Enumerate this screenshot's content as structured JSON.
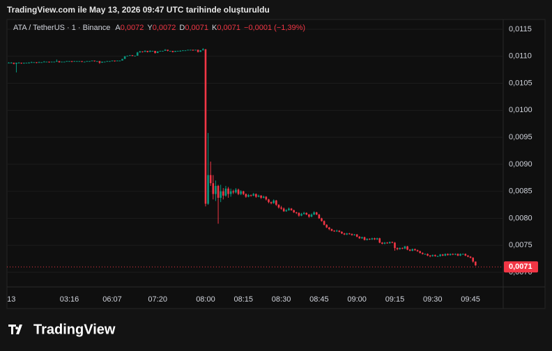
{
  "header": {
    "title": "TradingView.com ile May 13, 2026 09:47 UTC tarihinde oluşturuldu",
    "brand": "TradingView"
  },
  "chart_data": {
    "type": "candlestick",
    "symbol": "ATA / TetherUS · 1 · Binance",
    "ohlc_legend": [
      {
        "label": "A",
        "value": "0,0072"
      },
      {
        "label": "Y",
        "value": "0,0072"
      },
      {
        "label": "D",
        "value": "0,0071"
      },
      {
        "label": "K",
        "value": "0,0071"
      }
    ],
    "change": "−0,0001 (−1,39%)",
    "up_color": "#089981",
    "down_color": "#f23645",
    "grid": true,
    "ylim": [
      0.00673,
      0.01168
    ],
    "yticks": [
      {
        "value": 0.007,
        "label": "0,0070"
      },
      {
        "value": 0.0075,
        "label": "0,0075"
      },
      {
        "value": 0.008,
        "label": "0,0080"
      },
      {
        "value": 0.0085,
        "label": "0,0085"
      },
      {
        "value": 0.009,
        "label": "0,0090"
      },
      {
        "value": 0.0095,
        "label": "0,0095"
      },
      {
        "value": 0.01,
        "label": "0,0100"
      },
      {
        "value": 0.0105,
        "label": "0,0105"
      },
      {
        "value": 0.011,
        "label": "0,0110"
      },
      {
        "value": 0.0115,
        "label": "0,0115"
      }
    ],
    "last_price": {
      "value": 0.0071,
      "label": "0,0071"
    },
    "categories": [
      null,
      "13",
      null,
      null,
      null,
      null,
      null,
      null,
      null,
      null,
      null,
      null,
      null,
      null,
      null,
      null,
      null,
      null,
      null,
      null,
      null,
      null,
      null,
      null,
      "03:16",
      null,
      null,
      null,
      null,
      null,
      null,
      null,
      null,
      null,
      null,
      null,
      null,
      null,
      null,
      null,
      null,
      "06:07",
      null,
      null,
      null,
      null,
      null,
      null,
      null,
      null,
      null,
      null,
      null,
      null,
      null,
      null,
      null,
      null,
      null,
      "07:20",
      null,
      null,
      null,
      null,
      null,
      null,
      null,
      null,
      null,
      null,
      null,
      null,
      null,
      null,
      null,
      null,
      null,
      null,
      "08:00",
      null,
      null,
      null,
      null,
      null,
      null,
      null,
      null,
      null,
      null,
      null,
      null,
      null,
      null,
      "08:15",
      null,
      null,
      null,
      null,
      null,
      null,
      null,
      null,
      null,
      null,
      null,
      null,
      null,
      null,
      "08:30",
      null,
      null,
      null,
      null,
      null,
      null,
      null,
      null,
      null,
      null,
      null,
      null,
      null,
      null,
      "08:45",
      null,
      null,
      null,
      null,
      null,
      null,
      null,
      null,
      null,
      null,
      null,
      null,
      null,
      null,
      "09:00",
      null,
      null,
      null,
      null,
      null,
      null,
      null,
      null,
      null,
      null,
      null,
      null,
      null,
      null,
      "09:15",
      null,
      null,
      null,
      null,
      null,
      null,
      null,
      null,
      null,
      null,
      null,
      null,
      null,
      null,
      "09:30",
      null,
      null,
      null,
      null,
      null,
      null,
      null,
      null,
      null,
      null,
      null,
      null,
      null,
      null,
      "09:45",
      null,
      null
    ],
    "open": [
      0.01088,
      0.01088,
      0.01088,
      0.01086,
      0.01088,
      0.01088,
      0.01087,
      0.01088,
      0.01088,
      0.01088,
      0.01089,
      0.01089,
      0.01088,
      0.01089,
      0.01089,
      0.0109,
      0.0109,
      0.01089,
      0.0109,
      0.0109,
      0.01091,
      0.01089,
      0.0109,
      0.0109,
      0.01091,
      0.01091,
      0.0109,
      0.01091,
      0.01091,
      0.01091,
      0.0109,
      0.0109,
      0.01091,
      0.01091,
      0.01092,
      0.01091,
      0.01091,
      0.01088,
      0.0109,
      0.0109,
      0.01091,
      0.01091,
      0.01092,
      0.01091,
      0.01092,
      0.01092,
      0.01095,
      0.011,
      0.01101,
      0.01102,
      0.01101,
      0.01101,
      0.01107,
      0.01109,
      0.01108,
      0.0111,
      0.01108,
      0.0111,
      0.0111,
      0.01106,
      0.01109,
      0.0111,
      0.0111,
      0.01112,
      0.0111,
      0.0111,
      0.01108,
      0.0111,
      0.0111,
      0.0111,
      0.01111,
      0.01111,
      0.01112,
      0.01112,
      0.01111,
      0.01112,
      0.01108,
      0.01111,
      0.01113,
      0.00827,
      0.0088,
      0.00865,
      0.00845,
      0.0086,
      0.00838,
      0.0085,
      0.00842,
      0.00855,
      0.00845,
      0.0085,
      0.00848,
      0.00853,
      0.00845,
      0.0085,
      0.00845,
      0.0084,
      0.00843,
      0.00842,
      0.00845,
      0.0084,
      0.00842,
      0.00838,
      0.0084,
      0.00835,
      0.0083,
      0.00828,
      0.00833,
      0.00825,
      0.0082,
      0.00818,
      0.00813,
      0.00815,
      0.00818,
      0.00815,
      0.00811,
      0.0081,
      0.00805,
      0.00808,
      0.0081,
      0.00807,
      0.00803,
      0.00807,
      0.00811,
      0.00807,
      0.008,
      0.00795,
      0.00788,
      0.00783,
      0.0078,
      0.00777,
      0.00776,
      0.00777,
      0.00775,
      0.00772,
      0.0077,
      0.00772,
      0.00771,
      0.00769,
      0.0077,
      0.00766,
      0.00763,
      0.00765,
      0.0076,
      0.00762,
      0.00761,
      0.00763,
      0.00761,
      0.00763,
      0.00755,
      0.00753,
      0.00755,
      0.00754,
      0.00756,
      0.00755,
      0.00745,
      0.00743,
      0.00745,
      0.00744,
      0.00748,
      0.00742,
      0.0074,
      0.00743,
      0.00741,
      0.00739,
      0.00736,
      0.00734,
      0.00734,
      0.00731,
      0.0073,
      0.00732,
      0.0073,
      0.0073,
      0.00733,
      0.00731,
      0.00734,
      0.00732,
      0.00734,
      0.00733,
      0.00734,
      0.00731,
      0.00734,
      0.00734,
      0.00731,
      0.00729,
      0.00727,
      0.0072
    ],
    "high": [
      0.01089,
      0.01089,
      0.01088,
      0.01088,
      0.01089,
      0.01088,
      0.01088,
      0.01088,
      0.01089,
      0.0109,
      0.01089,
      0.01089,
      0.0109,
      0.01089,
      0.01091,
      0.0109,
      0.0109,
      0.0109,
      0.0109,
      0.01094,
      0.01091,
      0.0109,
      0.0109,
      0.01091,
      0.01091,
      0.01091,
      0.01091,
      0.01091,
      0.01091,
      0.01091,
      0.0109,
      0.01091,
      0.01091,
      0.01092,
      0.01092,
      0.01091,
      0.01091,
      0.0109,
      0.0109,
      0.01091,
      0.01091,
      0.01092,
      0.01092,
      0.01092,
      0.01092,
      0.01095,
      0.011,
      0.01101,
      0.01102,
      0.01102,
      0.01101,
      0.01108,
      0.0111,
      0.01109,
      0.01111,
      0.0111,
      0.01111,
      0.0111,
      0.0111,
      0.01109,
      0.0111,
      0.0111,
      0.01113,
      0.01112,
      0.0111,
      0.0111,
      0.0111,
      0.0111,
      0.01111,
      0.01111,
      0.01111,
      0.01112,
      0.01112,
      0.01112,
      0.01112,
      0.01112,
      0.01111,
      0.01115,
      0.01113,
      0.00958,
      0.00905,
      0.0088,
      0.0087,
      0.00862,
      0.00862,
      0.00856,
      0.0086,
      0.00858,
      0.00855,
      0.00853,
      0.00856,
      0.00855,
      0.00852,
      0.00851,
      0.00846,
      0.00845,
      0.00844,
      0.00847,
      0.00846,
      0.00844,
      0.00843,
      0.00842,
      0.00841,
      0.00836,
      0.00831,
      0.00835,
      0.00834,
      0.00826,
      0.00823,
      0.0082,
      0.00817,
      0.0082,
      0.00819,
      0.00816,
      0.00812,
      0.00811,
      0.0081,
      0.00812,
      0.00811,
      0.00808,
      0.00809,
      0.00813,
      0.00812,
      0.00808,
      0.00801,
      0.00796,
      0.00789,
      0.00784,
      0.00781,
      0.00778,
      0.00779,
      0.00778,
      0.00776,
      0.00773,
      0.00773,
      0.00773,
      0.00772,
      0.00771,
      0.00771,
      0.00767,
      0.00766,
      0.00766,
      0.00763,
      0.00763,
      0.00764,
      0.00764,
      0.00764,
      0.00764,
      0.00756,
      0.00756,
      0.00756,
      0.00757,
      0.00757,
      0.00756,
      0.00746,
      0.00746,
      0.00746,
      0.00749,
      0.00749,
      0.00743,
      0.00744,
      0.00744,
      0.00742,
      0.0074,
      0.00737,
      0.00735,
      0.00735,
      0.00732,
      0.00733,
      0.00733,
      0.00731,
      0.00734,
      0.00734,
      0.00735,
      0.00735,
      0.00735,
      0.00735,
      0.00735,
      0.00735,
      0.00735,
      0.00735,
      0.00735,
      0.00732,
      0.0073,
      0.00728,
      0.0072
    ],
    "low": [
      0.01087,
      0.01087,
      0.01085,
      0.0107,
      0.01087,
      0.01086,
      0.01086,
      0.01088,
      0.01087,
      0.01088,
      0.01089,
      0.01087,
      0.01088,
      0.01089,
      0.01089,
      0.0109,
      0.01088,
      0.01089,
      0.0109,
      0.0109,
      0.01088,
      0.01089,
      0.0109,
      0.0109,
      0.01091,
      0.01089,
      0.0109,
      0.01091,
      0.01091,
      0.01089,
      0.0109,
      0.0109,
      0.01091,
      0.01091,
      0.0109,
      0.01091,
      0.01086,
      0.01088,
      0.0109,
      0.0109,
      0.01091,
      0.01091,
      0.0109,
      0.01091,
      0.01092,
      0.01092,
      0.01095,
      0.011,
      0.01101,
      0.011,
      0.01101,
      0.01101,
      0.01107,
      0.01107,
      0.01108,
      0.01107,
      0.01108,
      0.0111,
      0.01105,
      0.01106,
      0.01109,
      0.0111,
      0.0111,
      0.01109,
      0.0111,
      0.01107,
      0.01108,
      0.0111,
      0.0111,
      0.0111,
      0.01111,
      0.01111,
      0.01112,
      0.0111,
      0.01111,
      0.01107,
      0.01108,
      0.01111,
      0.00822,
      0.00825,
      0.0086,
      0.00835,
      0.00832,
      0.0079,
      0.0083,
      0.00835,
      0.0084,
      0.00838,
      0.0084,
      0.00845,
      0.00846,
      0.00843,
      0.00843,
      0.00843,
      0.00838,
      0.00839,
      0.0084,
      0.00841,
      0.00838,
      0.00839,
      0.00836,
      0.00837,
      0.00833,
      0.00828,
      0.00826,
      0.00827,
      0.00823,
      0.00818,
      0.00816,
      0.00812,
      0.00812,
      0.00814,
      0.00814,
      0.0081,
      0.00808,
      0.00803,
      0.00804,
      0.00807,
      0.00806,
      0.00801,
      0.00802,
      0.00806,
      0.00806,
      0.00799,
      0.00794,
      0.00787,
      0.00782,
      0.00778,
      0.00776,
      0.00775,
      0.00775,
      0.00774,
      0.00771,
      0.00769,
      0.00769,
      0.0077,
      0.00768,
      0.00768,
      0.00765,
      0.00762,
      0.00762,
      0.00759,
      0.00759,
      0.0076,
      0.0076,
      0.0076,
      0.0076,
      0.00754,
      0.00752,
      0.00752,
      0.00753,
      0.00753,
      0.00754,
      0.0074,
      0.00741,
      0.00742,
      0.00743,
      0.00743,
      0.00741,
      0.00739,
      0.00739,
      0.0074,
      0.00738,
      0.00735,
      0.00733,
      0.00733,
      0.0073,
      0.00728,
      0.00729,
      0.00729,
      0.00729,
      0.00729,
      0.0073,
      0.0073,
      0.00731,
      0.00731,
      0.00732,
      0.00732,
      0.0073,
      0.0073,
      0.00733,
      0.0073,
      0.00728,
      0.00726,
      0.00718,
      0.00712
    ],
    "close": [
      0.01088,
      0.01088,
      0.01086,
      0.01088,
      0.01088,
      0.01087,
      0.01088,
      0.01088,
      0.01088,
      0.01089,
      0.01089,
      0.01088,
      0.01089,
      0.01089,
      0.0109,
      0.0109,
      0.01089,
      0.0109,
      0.0109,
      0.01091,
      0.01089,
      0.0109,
      0.0109,
      0.01091,
      0.01091,
      0.0109,
      0.01091,
      0.01091,
      0.01091,
      0.0109,
      0.0109,
      0.01091,
      0.01091,
      0.01092,
      0.01091,
      0.01091,
      0.01088,
      0.0109,
      0.0109,
      0.01091,
      0.01091,
      0.01092,
      0.01091,
      0.01092,
      0.01092,
      0.01095,
      0.011,
      0.01101,
      0.01102,
      0.01101,
      0.01101,
      0.01107,
      0.01109,
      0.01108,
      0.0111,
      0.01108,
      0.0111,
      0.0111,
      0.01106,
      0.01109,
      0.0111,
      0.0111,
      0.01112,
      0.0111,
      0.0111,
      0.01108,
      0.0111,
      0.0111,
      0.0111,
      0.01111,
      0.01111,
      0.01112,
      0.01112,
      0.01111,
      0.01112,
      0.01108,
      0.01111,
      0.01113,
      0.00827,
      0.0088,
      0.00865,
      0.00845,
      0.0086,
      0.00838,
      0.0085,
      0.00842,
      0.00855,
      0.00845,
      0.0085,
      0.00848,
      0.00853,
      0.00845,
      0.0085,
      0.00845,
      0.0084,
      0.00843,
      0.00842,
      0.00845,
      0.0084,
      0.00842,
      0.00838,
      0.0084,
      0.00835,
      0.0083,
      0.00828,
      0.00833,
      0.00825,
      0.0082,
      0.00818,
      0.00813,
      0.00815,
      0.00818,
      0.00815,
      0.00811,
      0.0081,
      0.00805,
      0.00808,
      0.0081,
      0.00807,
      0.00803,
      0.00807,
      0.00811,
      0.00807,
      0.008,
      0.00795,
      0.00788,
      0.00783,
      0.0078,
      0.00777,
      0.00776,
      0.00777,
      0.00775,
      0.00772,
      0.0077,
      0.00772,
      0.00771,
      0.00769,
      0.0077,
      0.00766,
      0.00763,
      0.00765,
      0.0076,
      0.00762,
      0.00761,
      0.00763,
      0.00761,
      0.00763,
      0.00755,
      0.00753,
      0.00755,
      0.00754,
      0.00756,
      0.00755,
      0.00745,
      0.00743,
      0.00745,
      0.00744,
      0.00748,
      0.00742,
      0.0074,
      0.00743,
      0.00741,
      0.00739,
      0.00736,
      0.00734,
      0.00734,
      0.00731,
      0.0073,
      0.00732,
      0.0073,
      0.0073,
      0.00733,
      0.00731,
      0.00734,
      0.00732,
      0.00734,
      0.00733,
      0.00734,
      0.00731,
      0.00734,
      0.00734,
      0.00731,
      0.00729,
      0.00727,
      0.0072,
      0.00713
    ]
  }
}
